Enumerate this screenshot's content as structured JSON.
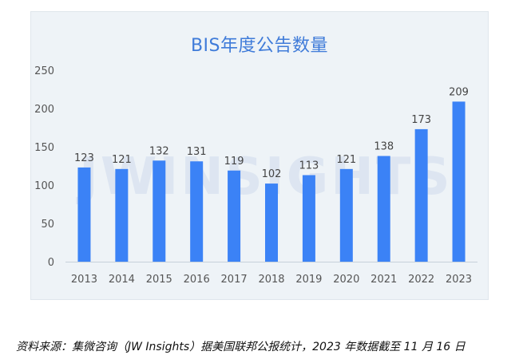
{
  "watermark": "JWINSIGHTS",
  "caption": "资料来源：集微咨询（JW Insights）据美国联邦公报统计，2023 年数据截至 11 月 16 日",
  "colors": {
    "bar": "#3b82f6",
    "axis_text": "#555555",
    "title": "#3f7bd9",
    "panel": "#eef3f7"
  },
  "chart_data": {
    "type": "bar",
    "title": "BIS年度公告数量",
    "categories": [
      "2013",
      "2014",
      "2015",
      "2016",
      "2017",
      "2018",
      "2019",
      "2020",
      "2021",
      "2022",
      "2023"
    ],
    "series": [
      {
        "values": [
          123,
          121,
          132,
          131,
          119,
          102,
          113,
          121,
          138,
          173,
          209
        ]
      }
    ],
    "ylim": [
      0,
      250
    ],
    "yticks": [
      0,
      50,
      100,
      150,
      200,
      250
    ],
    "grid": false,
    "legend": "none",
    "xlabel": "",
    "ylabel": ""
  }
}
